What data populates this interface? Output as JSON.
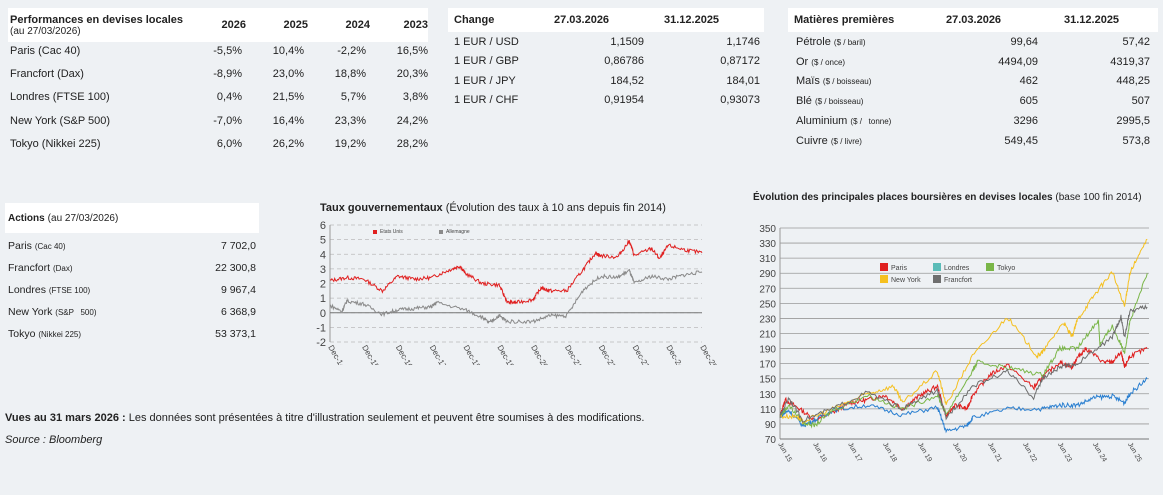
{
  "performance": {
    "title": "Performances en devises locales",
    "subtitle": "(au 27/03/2026)",
    "columns": [
      "2026",
      "2025",
      "2024",
      "2023"
    ],
    "rows": [
      {
        "label": "Paris (Cac 40)",
        "values": [
          "-5,5%",
          "10,4%",
          "-2,2%",
          "16,5%"
        ]
      },
      {
        "label": "Francfort (Dax)",
        "values": [
          "-8,9%",
          "23,0%",
          "18,8%",
          "20,3%"
        ]
      },
      {
        "label": "Londres (FTSE 100)",
        "values": [
          "0,4%",
          "21,5%",
          "5,7%",
          "3,8%"
        ]
      },
      {
        "label": "New York (S&P   500)",
        "values": [
          "-7,0%",
          "16,4%",
          "23,3%",
          "24,2%"
        ]
      },
      {
        "label": "Tokyo (Nikkei 225)",
        "values": [
          "6,0%",
          "26,2%",
          "19,2%",
          "28,2%"
        ]
      }
    ]
  },
  "change": {
    "title": "Change",
    "columns": [
      "27.03.2026",
      "31.12.2025"
    ],
    "rows": [
      {
        "label": "1 EUR / USD",
        "values": [
          "1,1509",
          "1,1746"
        ]
      },
      {
        "label": "1 EUR / GBP",
        "values": [
          "0,86786",
          "0,87172"
        ]
      },
      {
        "label": "1 EUR / JPY",
        "values": [
          "184,52",
          "184,01"
        ]
      },
      {
        "label": "1 EUR / CHF",
        "values": [
          "0,91954",
          "0,93073"
        ]
      }
    ]
  },
  "commodities": {
    "title": "Matières premières",
    "columns": [
      "27.03.2026",
      "31.12.2025"
    ],
    "rows": [
      {
        "label": "Pétrole",
        "unit": "($ / baril)",
        "values": [
          "99,64",
          "57,42"
        ]
      },
      {
        "label": "Or",
        "unit": "($ / once)",
        "values": [
          "4494,09",
          "4319,37"
        ]
      },
      {
        "label": "Maïs",
        "unit": "($ / boisseau)",
        "values": [
          "462",
          "448,25"
        ]
      },
      {
        "label": "Blé",
        "unit": "($ / boisseau)",
        "values": [
          "605",
          "507"
        ]
      },
      {
        "label": "Aluminium",
        "unit": "($ /   tonne)",
        "values": [
          "3296",
          "2995,5"
        ]
      },
      {
        "label": "Cuivre",
        "unit": "($ / livre)",
        "values": [
          "549,45",
          "573,8"
        ]
      }
    ]
  },
  "actions": {
    "title": "Actions",
    "subtitle": "(au 27/03/2026)",
    "rows": [
      {
        "label": "Paris",
        "index": "(Cac 40)",
        "value": "7 702,0"
      },
      {
        "label": "Francfort",
        "index": "(Dax)",
        "value": "22 300,8"
      },
      {
        "label": "Londres",
        "index": "(FTSE 100)",
        "value": "9 967,4"
      },
      {
        "label": "New York",
        "index": "(S&P   500)",
        "value": "6 368,9"
      },
      {
        "label": "Tokyo",
        "index": "(Nikkei 225)",
        "value": "53 373,1"
      }
    ]
  },
  "footer": {
    "bold": "Vues au 31 mars 2026 :",
    "text": " Les données sont présentées à titre d'illustration seulement et peuvent être soumises à des modifications.",
    "source": "Source : Bloomberg"
  },
  "chart_data": [
    {
      "type": "line",
      "title": "Taux gouvernementaux",
      "subtitle": "(Évolution des taux à 10 ans depuis fin 2014)",
      "ylim": [
        -2,
        6
      ],
      "yticks": [
        "-2",
        "-1",
        "0",
        "1",
        "2",
        "3",
        "4",
        "5",
        "6"
      ],
      "xlim": [
        2014.95,
        2025.95
      ],
      "xtick_labels": [
        "Dec-14",
        "Dec-15",
        "Dec-16",
        "Dec-17",
        "Dec-18",
        "Dec-19",
        "Dec-20",
        "Dec-21",
        "Dec-22",
        "Dec-23",
        "Dec-24",
        "Dec-25"
      ],
      "grid": true,
      "legend": "top-left",
      "series": [
        {
          "name": "Etats Unis",
          "color": "#e02020",
          "x": [
            2014.95,
            2015.45,
            2015.95,
            2016.5,
            2016.95,
            2017.45,
            2017.95,
            2018.45,
            2018.8,
            2018.95,
            2019.45,
            2019.95,
            2020.2,
            2020.45,
            2020.95,
            2021.2,
            2021.45,
            2021.95,
            2022.45,
            2022.8,
            2022.95,
            2023.45,
            2023.8,
            2023.95,
            2024.45,
            2024.7,
            2024.95,
            2025.45,
            2025.95
          ],
          "y": [
            2.2,
            2.4,
            2.3,
            1.5,
            2.5,
            2.3,
            2.4,
            2.9,
            3.2,
            2.7,
            2.0,
            1.9,
            0.7,
            0.7,
            0.9,
            1.7,
            1.5,
            1.5,
            3.0,
            4.1,
            3.9,
            3.8,
            4.9,
            3.9,
            4.4,
            3.7,
            4.6,
            4.3,
            4.1
          ]
        },
        {
          "name": "Allemagne",
          "color": "#8a8a8a",
          "x": [
            2014.95,
            2015.3,
            2015.45,
            2015.95,
            2016.5,
            2016.95,
            2017.45,
            2017.95,
            2018.1,
            2018.95,
            2019.45,
            2019.65,
            2019.95,
            2020.2,
            2020.95,
            2021.45,
            2021.95,
            2022.45,
            2022.95,
            2023.45,
            2023.8,
            2023.95,
            2024.45,
            2024.95,
            2025.45,
            2025.95
          ],
          "y": [
            0.5,
            0.1,
            0.8,
            0.6,
            -0.1,
            0.2,
            0.3,
            0.4,
            0.7,
            0.2,
            -0.3,
            -0.7,
            -0.2,
            -0.6,
            -0.6,
            -0.2,
            -0.2,
            1.6,
            2.5,
            2.4,
            2.9,
            2.0,
            2.5,
            2.3,
            2.6,
            2.8
          ]
        }
      ]
    },
    {
      "type": "line",
      "title": "Évolution des principales places boursières en devises locales",
      "subtitle": "(base 100 fin 2014)",
      "ylim": [
        70,
        350
      ],
      "yticks": [
        "70",
        "90",
        "110",
        "130",
        "150",
        "170",
        "190",
        "210",
        "230",
        "250",
        "270",
        "290",
        "310",
        "330",
        "350"
      ],
      "xlim": [
        2015.45,
        2026.0
      ],
      "xtick_labels": [
        "Jun 15",
        "Jun 16",
        "Jun 17",
        "Jun 18",
        "Jun 19",
        "Jun 20",
        "Jun 21",
        "Jun 22",
        "Jun 23",
        "Jun 24",
        "Jun 25"
      ],
      "grid": true,
      "legend": "top-center",
      "series": [
        {
          "name": "Paris",
          "color": "#e02020",
          "x": [
            2015.45,
            2015.6,
            2015.95,
            2016.45,
            2016.95,
            2017.45,
            2017.95,
            2018.45,
            2018.95,
            2019.45,
            2019.95,
            2020.2,
            2020.45,
            2020.8,
            2020.95,
            2021.45,
            2021.95,
            2022.7,
            2022.95,
            2023.45,
            2023.8,
            2023.95,
            2024.2,
            2024.7,
            2024.95,
            2025.2,
            2025.3,
            2025.45,
            2025.95
          ],
          "y": [
            100,
            122,
            112,
            95,
            105,
            118,
            122,
            128,
            110,
            128,
            140,
            100,
            115,
            110,
            128,
            155,
            168,
            138,
            152,
            172,
            165,
            178,
            190,
            172,
            172,
            185,
            165,
            180,
            190
          ]
        },
        {
          "name": "Londres",
          "color": "#2a7fd0",
          "legend_color": "#5bbcb8",
          "x": [
            2015.45,
            2015.7,
            2016.1,
            2016.45,
            2016.95,
            2017.95,
            2018.95,
            2019.95,
            2020.2,
            2020.8,
            2020.95,
            2021.95,
            2022.95,
            2023.45,
            2023.95,
            2024.45,
            2024.95,
            2025.3,
            2025.45,
            2025.95
          ],
          "y": [
            100,
            108,
            88,
            95,
            108,
            115,
            102,
            112,
            80,
            88,
            98,
            110,
            110,
            115,
            115,
            125,
            127,
            118,
            130,
            150
          ]
        },
        {
          "name": "Tokyo",
          "color": "#7ab648",
          "x": [
            2015.45,
            2015.7,
            2016.1,
            2016.45,
            2016.95,
            2017.95,
            2018.95,
            2019.95,
            2020.2,
            2020.95,
            2021.1,
            2021.95,
            2022.95,
            2023.45,
            2023.95,
            2024.55,
            2024.6,
            2024.95,
            2025.3,
            2025.45,
            2025.95
          ],
          "y": [
            100,
            115,
            92,
            88,
            108,
            128,
            110,
            128,
            103,
            160,
            172,
            165,
            155,
            190,
            190,
            228,
            195,
            220,
            185,
            225,
            290
          ]
        },
        {
          "name": "New York",
          "color": "#f5c020",
          "x": [
            2015.45,
            2015.95,
            2016.1,
            2016.95,
            2017.95,
            2018.7,
            2018.95,
            2019.95,
            2020.2,
            2020.95,
            2021.95,
            2022.8,
            2022.95,
            2023.55,
            2023.8,
            2023.95,
            2024.45,
            2024.95,
            2025.3,
            2025.45,
            2025.95
          ],
          "y": [
            100,
            100,
            93,
            110,
            130,
            140,
            118,
            160,
            115,
            180,
            232,
            180,
            185,
            225,
            205,
            228,
            262,
            292,
            245,
            290,
            335
          ]
        },
        {
          "name": "Francfort",
          "color": "#6e6e6e",
          "x": [
            2015.45,
            2015.7,
            2016.1,
            2016.95,
            2017.95,
            2018.95,
            2019.95,
            2020.2,
            2020.95,
            2021.95,
            2022.7,
            2022.95,
            2023.45,
            2023.95,
            2024.95,
            2025.2,
            2025.3,
            2025.45,
            2025.95
          ],
          "y": [
            100,
            125,
            95,
            110,
            132,
            110,
            135,
            98,
            140,
            160,
            125,
            150,
            165,
            170,
            205,
            232,
            205,
            240,
            245
          ]
        }
      ]
    }
  ]
}
